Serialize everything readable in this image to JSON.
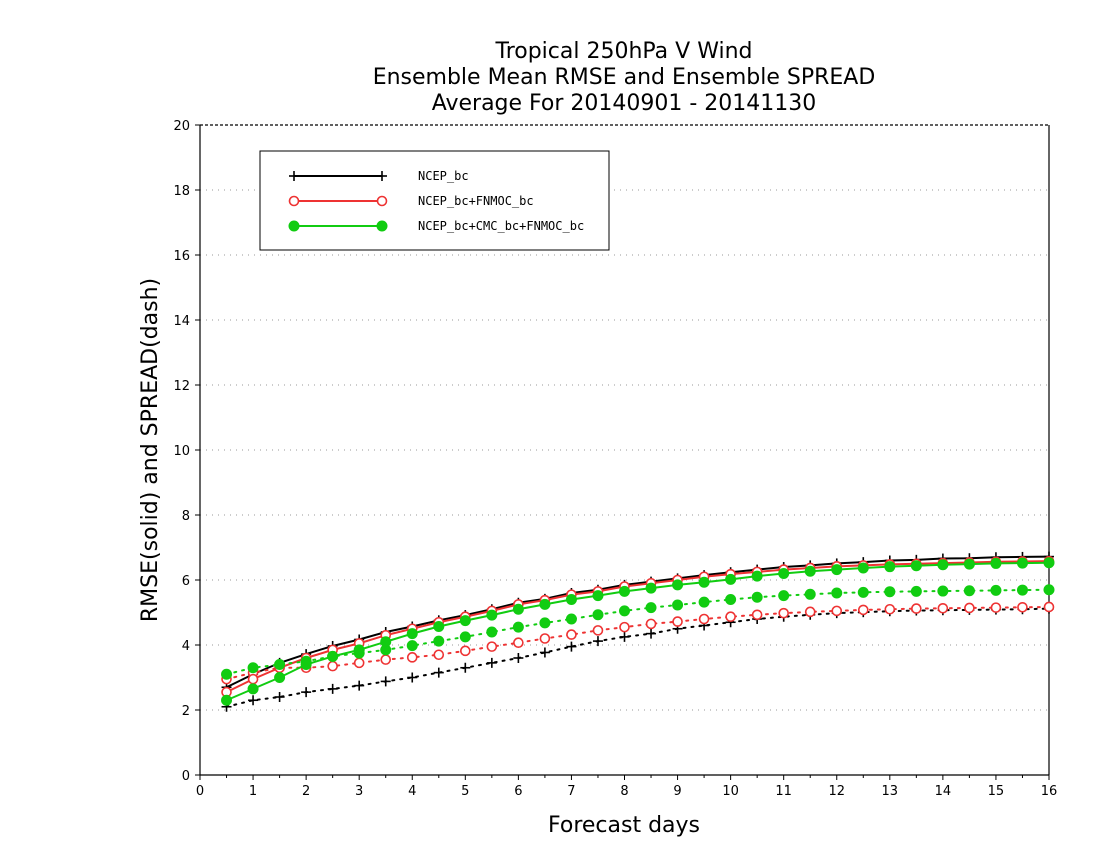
{
  "chart_data": {
    "type": "line",
    "title_lines": [
      "Tropical 250hPa V Wind",
      "Ensemble Mean RMSE and Ensemble SPREAD",
      "Average For 20140901 - 20141130"
    ],
    "xlabel": "Forecast days",
    "ylabel": "RMSE(solid) and SPREAD(dash)",
    "xlim": [
      0,
      16
    ],
    "ylim": [
      0,
      20
    ],
    "xticks": [
      "0",
      "1",
      "2",
      "3",
      "4",
      "5",
      "6",
      "7",
      "8",
      "9",
      "10",
      "11",
      "12",
      "13",
      "14",
      "15",
      "16"
    ],
    "yticks": [
      "0",
      "2",
      "4",
      "6",
      "8",
      "10",
      "12",
      "14",
      "16",
      "18",
      "20"
    ],
    "grid": "horizontal dotted",
    "legend_position": "top-left",
    "x": [
      0.5,
      1,
      1.5,
      2,
      2.5,
      3,
      3.5,
      4,
      4.5,
      5,
      5.5,
      6,
      6.5,
      7,
      7.5,
      8,
      8.5,
      9,
      9.5,
      10,
      10.5,
      11,
      11.5,
      12,
      12.5,
      13,
      13.5,
      14,
      14.5,
      15,
      15.5,
      16
    ],
    "series": [
      {
        "name": "NCEP_bc",
        "color": "#000000",
        "marker": "plus",
        "rmse": [
          2.7,
          3.1,
          3.45,
          3.72,
          3.97,
          4.17,
          4.4,
          4.57,
          4.76,
          4.92,
          5.1,
          5.3,
          5.42,
          5.6,
          5.7,
          5.85,
          5.95,
          6.05,
          6.15,
          6.24,
          6.32,
          6.4,
          6.45,
          6.51,
          6.55,
          6.6,
          6.62,
          6.66,
          6.67,
          6.7,
          6.71,
          6.72
        ],
        "spread": [
          2.1,
          2.3,
          2.4,
          2.55,
          2.65,
          2.75,
          2.88,
          3.0,
          3.15,
          3.3,
          3.45,
          3.6,
          3.77,
          3.95,
          4.12,
          4.25,
          4.35,
          4.5,
          4.6,
          4.7,
          4.8,
          4.87,
          4.93,
          4.98,
          5.01,
          5.04,
          5.06,
          5.07,
          5.08,
          5.09,
          5.1,
          5.12
        ]
      },
      {
        "name": "NCEP_bc+FNMOC_bc",
        "color": "#ee3333",
        "marker": "open-circle",
        "rmse": [
          2.55,
          2.95,
          3.3,
          3.6,
          3.85,
          4.05,
          4.3,
          4.5,
          4.7,
          4.87,
          5.05,
          5.25,
          5.38,
          5.55,
          5.65,
          5.8,
          5.9,
          6.0,
          6.1,
          6.18,
          6.25,
          6.32,
          6.37,
          6.42,
          6.45,
          6.48,
          6.5,
          6.52,
          6.54,
          6.56,
          6.57,
          6.58
        ],
        "spread": [
          2.95,
          3.15,
          3.3,
          3.3,
          3.35,
          3.45,
          3.55,
          3.62,
          3.7,
          3.82,
          3.95,
          4.07,
          4.2,
          4.32,
          4.45,
          4.55,
          4.65,
          4.72,
          4.8,
          4.87,
          4.93,
          4.98,
          5.02,
          5.05,
          5.08,
          5.1,
          5.12,
          5.13,
          5.14,
          5.15,
          5.16,
          5.17
        ]
      },
      {
        "name": "NCEP_bc+CMC_bc+FNMOC_bc",
        "color": "#11cc11",
        "marker": "filled-circle",
        "rmse": [
          2.3,
          2.65,
          3.0,
          3.4,
          3.65,
          3.85,
          4.1,
          4.35,
          4.57,
          4.75,
          4.92,
          5.1,
          5.25,
          5.4,
          5.52,
          5.65,
          5.75,
          5.85,
          5.93,
          6.02,
          6.12,
          6.2,
          6.27,
          6.32,
          6.37,
          6.41,
          6.44,
          6.47,
          6.49,
          6.51,
          6.52,
          6.53
        ],
        "spread": [
          3.1,
          3.3,
          3.4,
          3.5,
          3.65,
          3.75,
          3.85,
          3.98,
          4.12,
          4.25,
          4.4,
          4.55,
          4.68,
          4.8,
          4.93,
          5.05,
          5.15,
          5.23,
          5.32,
          5.4,
          5.47,
          5.52,
          5.56,
          5.6,
          5.62,
          5.64,
          5.65,
          5.66,
          5.67,
          5.68,
          5.69,
          5.7
        ]
      }
    ]
  }
}
